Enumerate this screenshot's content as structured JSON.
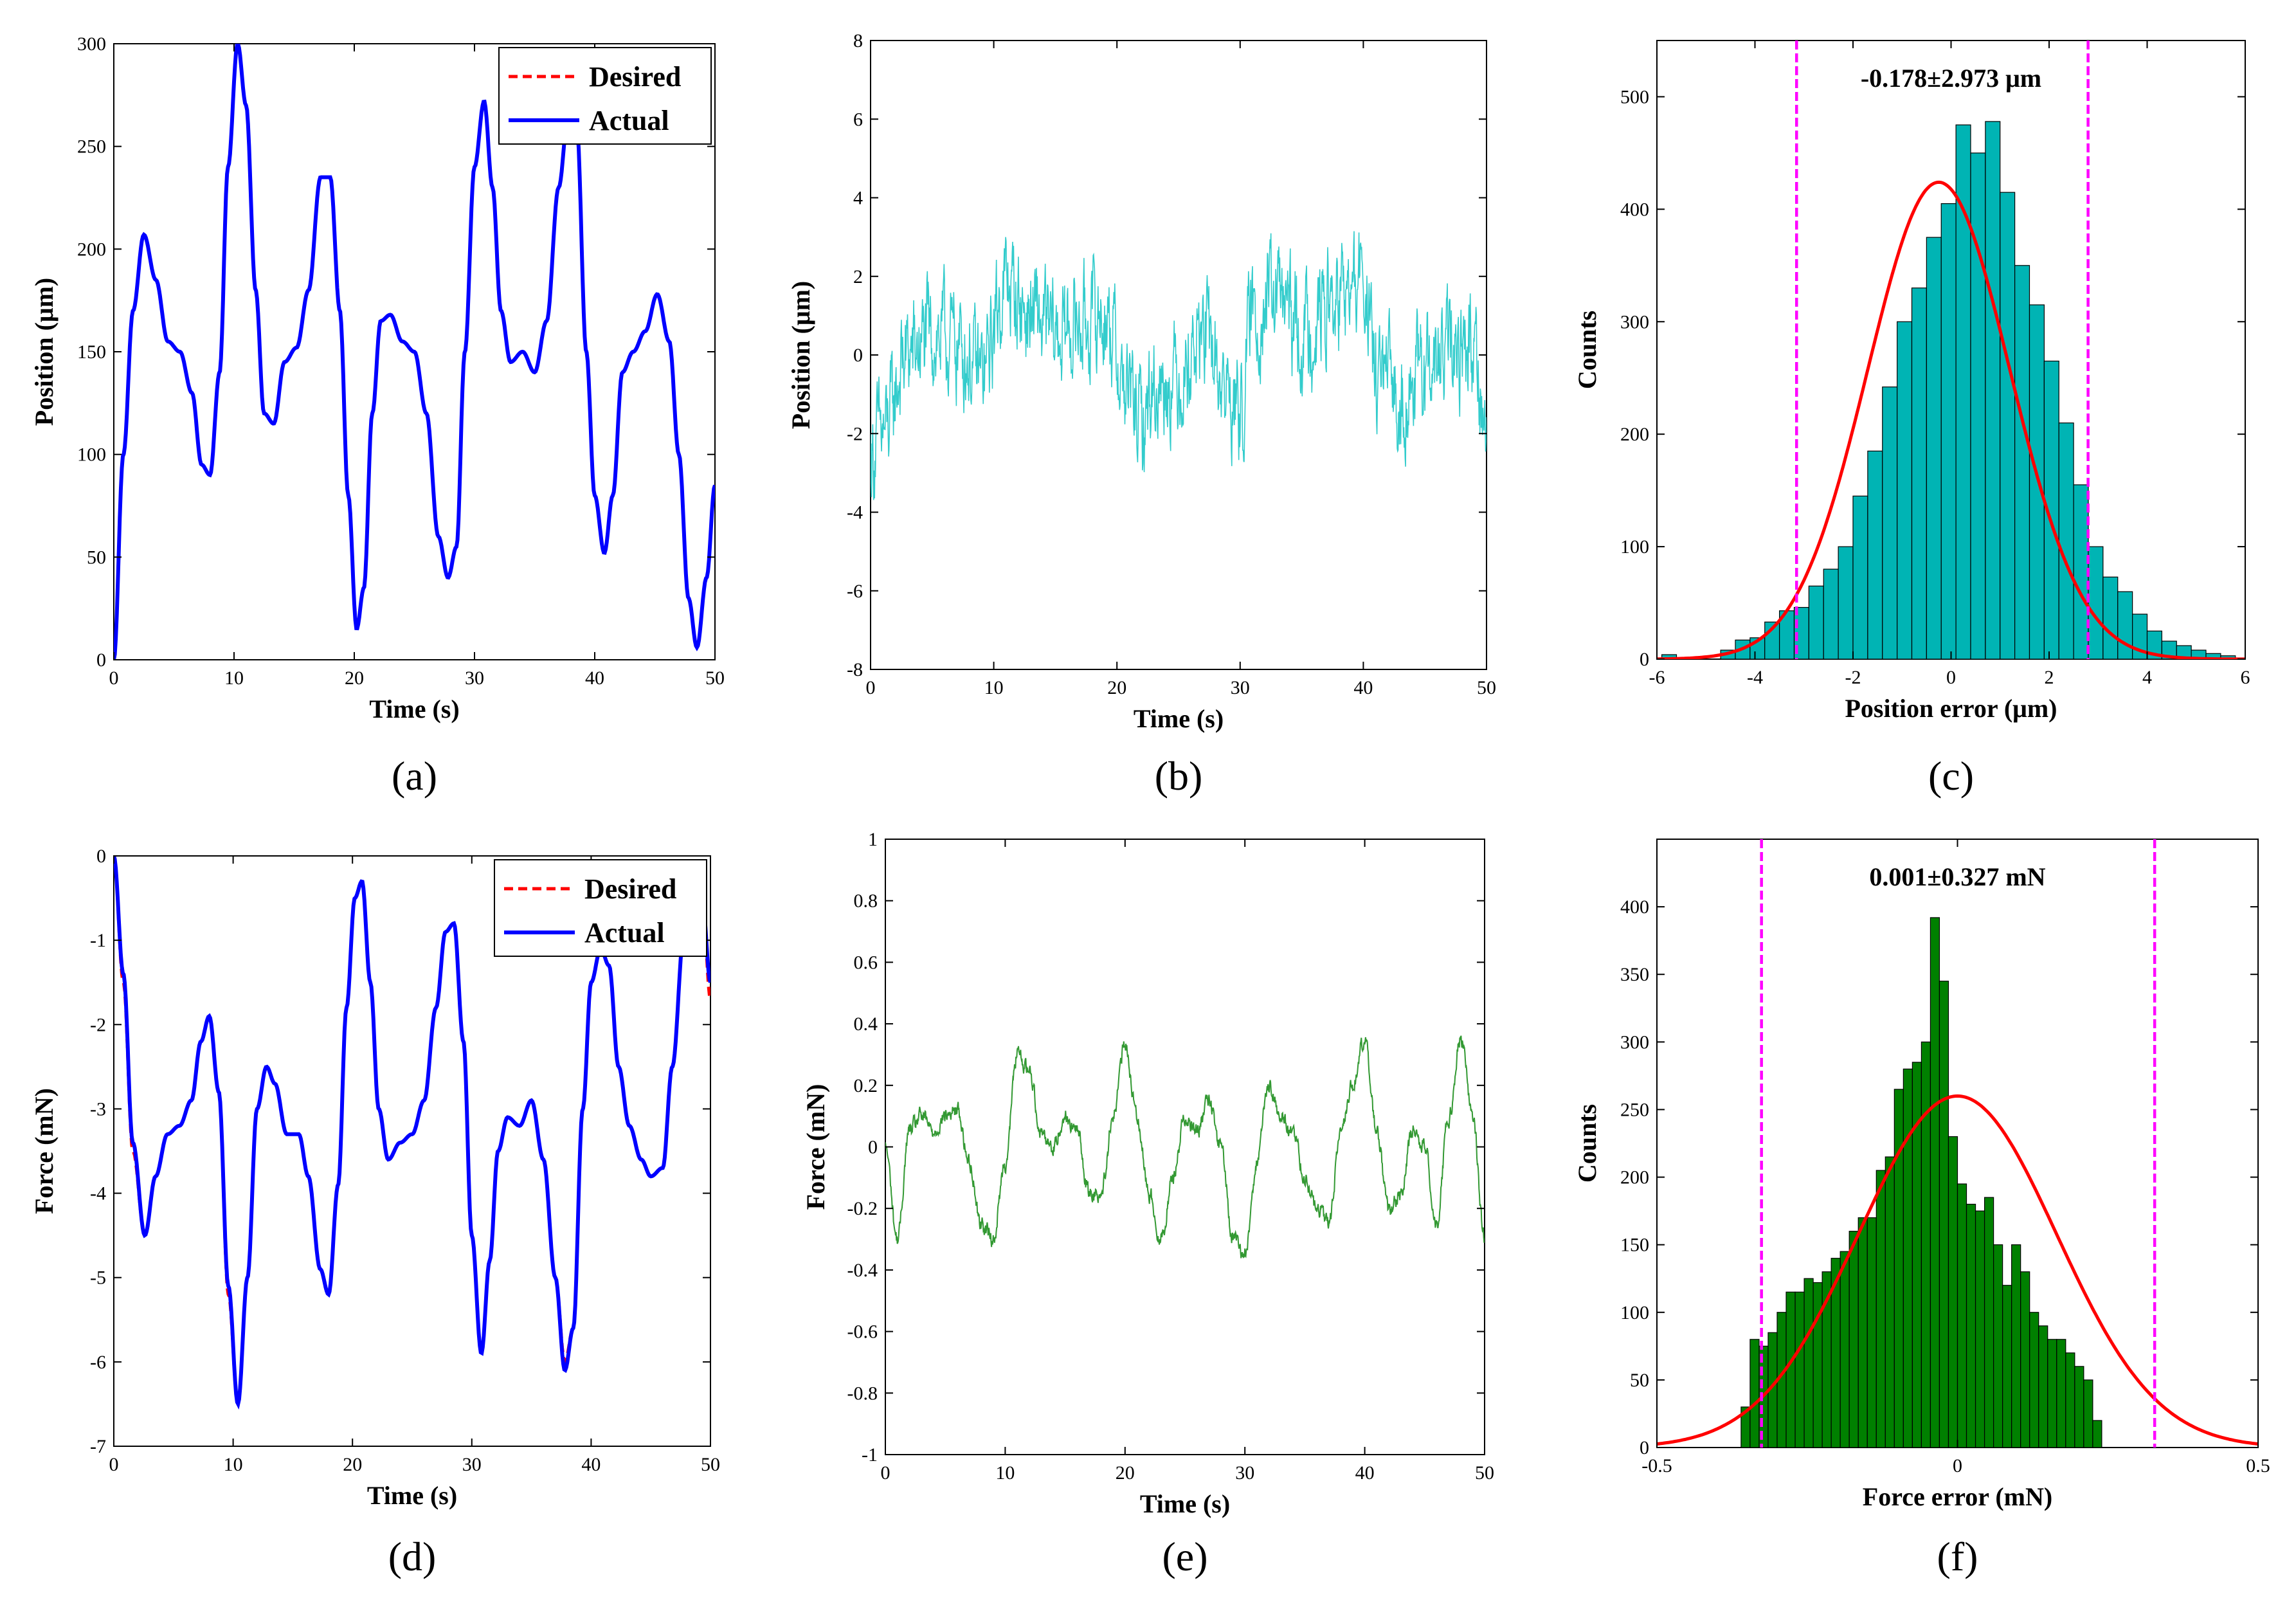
{
  "chart_data": [
    {
      "id": "a",
      "type": "line",
      "caption": "(a)",
      "xlabel": "Time (s)",
      "ylabel": "Position (μm)",
      "xlim": [
        0,
        50
      ],
      "ylim": [
        0,
        300
      ],
      "xticks": [
        "0",
        "10",
        "20",
        "30",
        "40",
        "50"
      ],
      "yticks": [
        "0",
        "50",
        "100",
        "150",
        "200",
        "250",
        "300"
      ],
      "legend": {
        "position": "top-right",
        "entries": [
          "Desired",
          "Actual"
        ]
      },
      "series": [
        {
          "name": "Desired",
          "color": "#ff0000",
          "style": "dashed",
          "x": [
            0,
            0.8,
            1.6,
            2.5,
            3.5,
            4.5,
            5.5,
            6.5,
            7.3,
            8.0,
            8.8,
            9.5,
            10.3,
            11.0,
            11.8,
            12.5,
            13.3,
            14.2,
            15.2,
            16.2,
            17.2,
            18.0,
            18.8,
            19.5,
            20.2,
            20.8,
            21.5,
            22.2,
            23.0,
            24.0,
            25.0,
            26.0,
            27.0,
            27.8,
            28.5,
            29.2,
            30.0,
            30.8,
            31.5,
            32.2,
            33.0,
            34.0,
            35.0,
            36.0,
            37.0,
            37.8,
            38.5,
            39.3,
            40.0,
            40.8,
            41.5,
            42.3,
            43.2,
            44.2,
            45.2,
            46.2,
            47.0,
            47.8,
            48.5,
            49.3,
            50.0
          ],
          "y": [
            0,
            100,
            170,
            207,
            185,
            155,
            150,
            130,
            95,
            90,
            140,
            240,
            300,
            270,
            180,
            120,
            115,
            145,
            152,
            180,
            235,
            235,
            170,
            80,
            15,
            35,
            120,
            165,
            168,
            155,
            150,
            120,
            60,
            40,
            55,
            150,
            240,
            272,
            230,
            170,
            145,
            150,
            140,
            165,
            230,
            265,
            260,
            150,
            80,
            52,
            80,
            140,
            150,
            160,
            178,
            155,
            100,
            30,
            6,
            40,
            85
          ]
        },
        {
          "name": "Actual",
          "color": "#0000ff",
          "style": "solid",
          "x": [
            0,
            0.8,
            1.6,
            2.5,
            3.5,
            4.5,
            5.5,
            6.5,
            7.3,
            8.0,
            8.8,
            9.5,
            10.3,
            11.0,
            11.8,
            12.5,
            13.3,
            14.2,
            15.2,
            16.2,
            17.2,
            18.0,
            18.8,
            19.5,
            20.2,
            20.8,
            21.5,
            22.2,
            23.0,
            24.0,
            25.0,
            26.0,
            27.0,
            27.8,
            28.5,
            29.2,
            30.0,
            30.8,
            31.5,
            32.2,
            33.0,
            34.0,
            35.0,
            36.0,
            37.0,
            37.8,
            38.5,
            39.3,
            40.0,
            40.8,
            41.5,
            42.3,
            43.2,
            44.2,
            45.2,
            46.2,
            47.0,
            47.8,
            48.5,
            49.3,
            50.0
          ],
          "y": [
            0,
            100,
            170,
            207,
            185,
            155,
            150,
            130,
            95,
            90,
            140,
            240,
            300,
            270,
            180,
            120,
            115,
            145,
            152,
            180,
            235,
            235,
            170,
            80,
            15,
            35,
            120,
            165,
            168,
            155,
            150,
            120,
            60,
            40,
            55,
            150,
            240,
            272,
            230,
            170,
            145,
            150,
            140,
            165,
            230,
            265,
            260,
            150,
            80,
            52,
            80,
            140,
            150,
            160,
            178,
            155,
            100,
            30,
            6,
            40,
            85
          ]
        }
      ]
    },
    {
      "id": "b",
      "type": "line",
      "caption": "(b)",
      "xlabel": "Time (s)",
      "ylabel": "Position (μm)",
      "xlim": [
        0,
        50
      ],
      "ylim": [
        -8,
        8
      ],
      "xticks": [
        "0",
        "10",
        "20",
        "30",
        "40",
        "50"
      ],
      "yticks": [
        "-8",
        "-6",
        "-4",
        "-2",
        "0",
        "2",
        "4",
        "6",
        "8"
      ],
      "noise_amplitude": 1.3,
      "series": [
        {
          "color": "#33cccc",
          "x": [
            0,
            1,
            3,
            5,
            7,
            9,
            11,
            13,
            15,
            17,
            19,
            21,
            22,
            23,
            25,
            27,
            29,
            30,
            31,
            33,
            35,
            37,
            39,
            40,
            41,
            43,
            45,
            47,
            49,
            50
          ],
          "y": [
            -2.5,
            -2,
            0,
            0.5,
            0.3,
            -0.5,
            1.8,
            1,
            0.5,
            0.8,
            1,
            -1,
            -1.8,
            -0.8,
            -0.5,
            0.5,
            -1,
            -1.5,
            1,
            1.5,
            0.5,
            1.2,
            1.5,
            2,
            -0.5,
            -1,
            -0.5,
            0,
            0.3,
            -2
          ]
        }
      ]
    },
    {
      "id": "c",
      "type": "bar",
      "caption": "(c)",
      "xlabel": "Position error (μm)",
      "ylabel": "Counts",
      "xlim": [
        -6,
        6
      ],
      "ylim": [
        0,
        550
      ],
      "xticks": [
        "-6",
        "-4",
        "-2",
        "0",
        "2",
        "4",
        "6"
      ],
      "yticks": [
        "0",
        "100",
        "200",
        "300",
        "400",
        "500"
      ],
      "annotation": "-0.178±2.973 μm",
      "bin_start": -5.9,
      "bin_width": 0.3,
      "bar_color": "#00b4b4",
      "values": [
        4,
        0,
        0,
        0,
        8,
        17,
        19,
        33,
        43,
        46,
        65,
        80,
        100,
        145,
        185,
        242,
        300,
        330,
        375,
        405,
        475,
        450,
        478,
        415,
        350,
        315,
        265,
        210,
        155,
        100,
        73,
        60,
        40,
        25,
        16,
        12,
        8,
        5,
        3,
        0
      ],
      "fit_curve": {
        "mean": -0.25,
        "sigma": 1.45,
        "peak": 424,
        "color": "#ff0000"
      },
      "bounds": {
        "values": [
          -3.151,
          2.795
        ],
        "color": "#ff00ff"
      }
    },
    {
      "id": "d",
      "type": "line",
      "caption": "(d)",
      "xlabel": "Time (s)",
      "ylabel": "Force (mN)",
      "xlim": [
        0,
        50
      ],
      "ylim": [
        -7,
        0
      ],
      "xticks": [
        "0",
        "10",
        "20",
        "30",
        "40",
        "50"
      ],
      "yticks": [
        "-7",
        "-6",
        "-5",
        "-4",
        "-3",
        "-2",
        "-1",
        "0"
      ],
      "legend": {
        "position": "top-right",
        "entries": [
          "Desired",
          "Actual"
        ]
      },
      "series": [
        {
          "name": "Desired",
          "color": "#ff0000",
          "style": "dashed",
          "x": [
            0,
            0.8,
            1.6,
            2.6,
            3.5,
            4.5,
            5.5,
            6.5,
            7.3,
            8.0,
            8.8,
            9.6,
            10.4,
            11.2,
            12.0,
            12.8,
            13.5,
            14.5,
            15.5,
            16.3,
            17.3,
            18.0,
            18.8,
            19.5,
            20.2,
            20.8,
            21.5,
            22.2,
            23.0,
            24.0,
            25.0,
            26.0,
            27.0,
            27.8,
            28.5,
            29.3,
            30.0,
            30.8,
            31.5,
            32.2,
            33.0,
            34.0,
            35.0,
            36.0,
            37.0,
            37.8,
            38.5,
            39.3,
            40.0,
            40.8,
            41.5,
            42.3,
            43.2,
            44.2,
            45.0,
            46.0,
            46.8,
            47.8,
            48.6,
            49.3,
            50.0
          ],
          "y": [
            0,
            -1.5,
            -3.5,
            -4.5,
            -3.8,
            -3.3,
            -3.2,
            -2.9,
            -2.2,
            -1.9,
            -2.8,
            -5.2,
            -6.5,
            -5.0,
            -3.0,
            -2.5,
            -2.7,
            -3.3,
            -3.3,
            -3.8,
            -4.9,
            -5.2,
            -3.9,
            -1.8,
            -0.5,
            -0.3,
            -1.5,
            -3.0,
            -3.6,
            -3.4,
            -3.3,
            -2.9,
            -1.8,
            -0.9,
            -0.8,
            -2.2,
            -4.5,
            -5.9,
            -4.8,
            -3.5,
            -3.1,
            -3.2,
            -2.9,
            -3.6,
            -5.0,
            -6.0,
            -5.6,
            -3.0,
            -1.5,
            -1.1,
            -1.3,
            -2.5,
            -3.2,
            -3.6,
            -3.8,
            -3.7,
            -2.5,
            -0.9,
            -0.2,
            -0.5,
            -1.7
          ]
        },
        {
          "name": "Actual",
          "color": "#0000ff",
          "style": "solid",
          "x": [
            0,
            0.8,
            1.6,
            2.6,
            3.5,
            4.5,
            5.5,
            6.5,
            7.3,
            8.0,
            8.8,
            9.6,
            10.4,
            11.2,
            12.0,
            12.8,
            13.5,
            14.5,
            15.5,
            16.3,
            17.3,
            18.0,
            18.8,
            19.5,
            20.2,
            20.8,
            21.5,
            22.2,
            23.0,
            24.0,
            25.0,
            26.0,
            27.0,
            27.8,
            28.5,
            29.3,
            30.0,
            30.8,
            31.5,
            32.2,
            33.0,
            34.0,
            35.0,
            36.0,
            37.0,
            37.8,
            38.5,
            39.3,
            40.0,
            40.8,
            41.5,
            42.3,
            43.2,
            44.2,
            45.0,
            46.0,
            46.8,
            47.8,
            48.6,
            49.3,
            50.0
          ],
          "y": [
            0,
            -1.4,
            -3.4,
            -4.5,
            -3.8,
            -3.3,
            -3.2,
            -2.9,
            -2.2,
            -1.9,
            -2.8,
            -5.1,
            -6.5,
            -5.0,
            -3.0,
            -2.5,
            -2.7,
            -3.3,
            -3.3,
            -3.8,
            -4.9,
            -5.2,
            -3.9,
            -1.8,
            -0.5,
            -0.3,
            -1.5,
            -3.0,
            -3.6,
            -3.4,
            -3.3,
            -2.9,
            -1.8,
            -0.9,
            -0.8,
            -2.2,
            -4.5,
            -5.9,
            -4.8,
            -3.5,
            -3.1,
            -3.2,
            -2.9,
            -3.6,
            -5.0,
            -6.1,
            -5.6,
            -3.0,
            -1.5,
            -1.1,
            -1.3,
            -2.5,
            -3.2,
            -3.6,
            -3.8,
            -3.7,
            -2.5,
            -0.9,
            -0.2,
            -0.5,
            -1.5
          ]
        }
      ]
    },
    {
      "id": "e",
      "type": "line",
      "caption": "(e)",
      "xlabel": "Time (s)",
      "ylabel": "Force (mN)",
      "xlim": [
        0,
        50
      ],
      "ylim": [
        -1,
        1
      ],
      "xticks": [
        "0",
        "10",
        "20",
        "30",
        "40",
        "50"
      ],
      "yticks": [
        "-1",
        "-0.8",
        "-0.6",
        "-0.4",
        "-0.2",
        "0",
        "0.2",
        "0.4",
        "0.6",
        "0.8",
        "1"
      ],
      "noise_amplitude": 0.03,
      "series": [
        {
          "color": "#339933",
          "x": [
            0,
            1,
            2,
            3,
            4,
            5,
            6,
            7,
            8,
            9,
            10,
            11,
            12,
            13,
            14,
            15,
            16,
            17,
            18,
            19,
            20,
            21,
            22,
            23,
            24,
            25,
            26,
            27,
            28,
            29,
            30,
            31,
            32,
            33,
            34,
            35,
            36,
            37,
            38,
            39,
            40,
            41,
            42,
            43,
            44,
            45,
            46,
            47,
            48,
            49,
            50
          ],
          "y": [
            0,
            -0.3,
            0.05,
            0.1,
            0.05,
            0.1,
            0.12,
            -0.05,
            -0.25,
            -0.3,
            -0.05,
            0.3,
            0.25,
            0.05,
            0.0,
            0.1,
            0.05,
            -0.15,
            -0.15,
            0.1,
            0.33,
            0.1,
            -0.15,
            -0.3,
            -0.1,
            0.1,
            0.05,
            0.15,
            0.0,
            -0.3,
            -0.35,
            -0.05,
            0.2,
            0.1,
            0.05,
            -0.1,
            -0.2,
            -0.25,
            0.05,
            0.2,
            0.35,
            0.05,
            -0.2,
            -0.15,
            0.05,
            0.0,
            -0.25,
            0.1,
            0.35,
            0.1,
            -0.3
          ]
        }
      ]
    },
    {
      "id": "f",
      "type": "bar",
      "caption": "(f)",
      "xlabel": "Force error (mN)",
      "ylabel": "Counts",
      "xlim": [
        -0.5,
        0.5
      ],
      "ylim": [
        0,
        450
      ],
      "xticks": [
        "-0.5",
        "0",
        "0.5"
      ],
      "yticks": [
        "0",
        "50",
        "100",
        "150",
        "200",
        "250",
        "300",
        "350",
        "400"
      ],
      "annotation": "0.001±0.327 mN",
      "bin_start": -0.36,
      "bin_width": 0.015,
      "bar_color": "#008000",
      "values": [
        30,
        80,
        75,
        85,
        100,
        115,
        115,
        125,
        122,
        130,
        140,
        145,
        160,
        170,
        170,
        205,
        215,
        265,
        280,
        285,
        300,
        392,
        345,
        230,
        195,
        180,
        175,
        185,
        150,
        120,
        150,
        130,
        100,
        90,
        80,
        80,
        70,
        60,
        50,
        20
      ],
      "fit_curve": {
        "mean": 0.0,
        "sigma": 0.165,
        "peak": 260,
        "color": "#ff0000"
      },
      "bounds": {
        "values": [
          -0.326,
          0.328
        ],
        "color": "#ff00ff"
      }
    }
  ]
}
